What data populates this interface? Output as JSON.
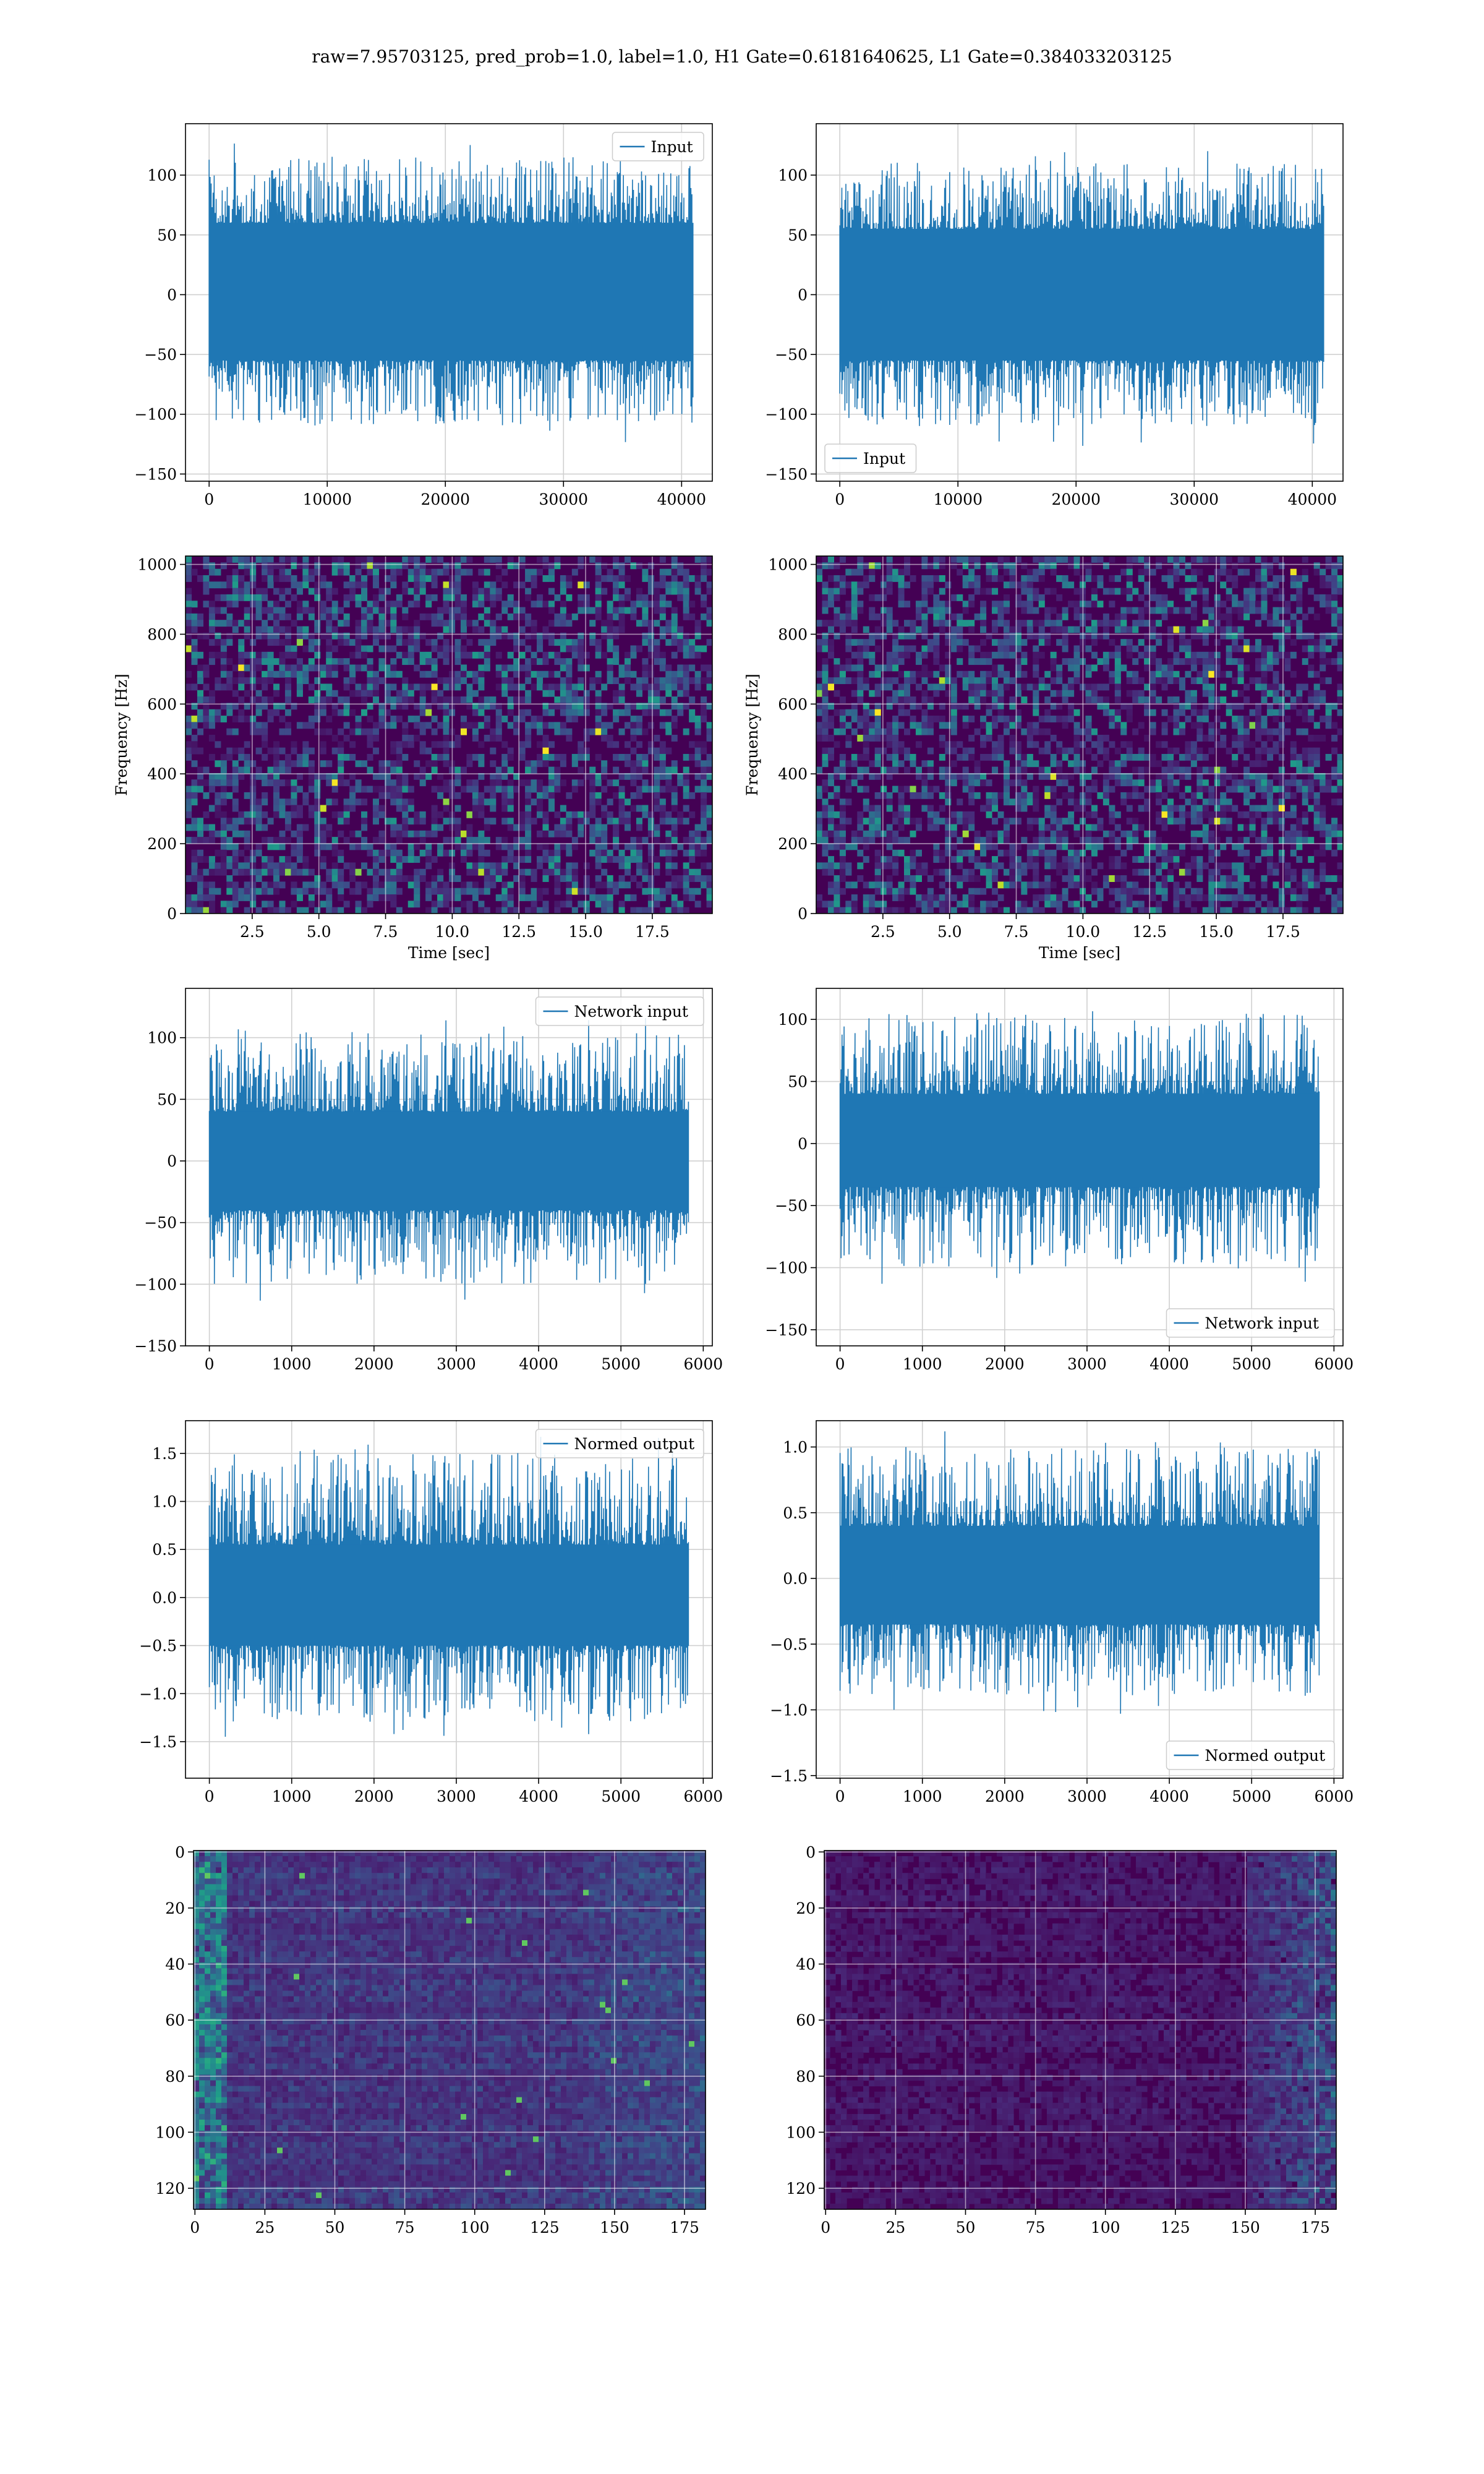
{
  "figure_title": "raw=7.95703125, pred_prob=1.0, label=1.0, H1 Gate=0.6181640625, L1 Gate=0.384033203125",
  "colors": {
    "line": "#1f77b4",
    "grid": "#d0d0d0",
    "viridis_low": "#440154",
    "viridis_high": "#fde725"
  },
  "chart_data": [
    {
      "id": "input-h1",
      "type": "line",
      "xlim": [
        -2000,
        42600
      ],
      "ylim": [
        -156,
        143
      ],
      "xticks": [
        0,
        10000,
        20000,
        30000,
        40000
      ],
      "yticks": [
        -150,
        -100,
        -50,
        0,
        50,
        100
      ],
      "series": [
        {
          "name": "Input",
          "x_range": [
            0,
            40960
          ],
          "envelope": [
            -110,
            115
          ],
          "core": [
            -55,
            60
          ]
        }
      ],
      "legend": "upper right",
      "grid": true
    },
    {
      "id": "input-l1",
      "type": "line",
      "xlim": [
        -2000,
        42600
      ],
      "ylim": [
        -156,
        143
      ],
      "xticks": [
        0,
        10000,
        20000,
        30000,
        40000
      ],
      "yticks": [
        -150,
        -100,
        -50,
        0,
        50,
        100
      ],
      "series": [
        {
          "name": "Input",
          "x_range": [
            0,
            40960
          ],
          "envelope": [
            -110,
            110
          ],
          "core": [
            -55,
            55
          ]
        }
      ],
      "legend": "lower left",
      "grid": true
    },
    {
      "id": "spectrogram-h1",
      "type": "heatmap",
      "xlim": [
        0,
        19.75
      ],
      "ylim": [
        0,
        1024
      ],
      "xticks": [
        2.5,
        5.0,
        7.5,
        10.0,
        12.5,
        15.0,
        17.5
      ],
      "yticks": [
        0,
        200,
        400,
        600,
        800,
        1000
      ],
      "xlabel": "Time [sec]",
      "ylabel": "Frequency [Hz]",
      "colormap": "viridis",
      "grid": true
    },
    {
      "id": "spectrogram-l1",
      "type": "heatmap",
      "xlim": [
        0,
        19.75
      ],
      "ylim": [
        0,
        1024
      ],
      "xticks": [
        2.5,
        5.0,
        7.5,
        10.0,
        12.5,
        15.0,
        17.5
      ],
      "yticks": [
        0,
        200,
        400,
        600,
        800,
        1000
      ],
      "xlabel": "Time [sec]",
      "ylabel": "Frequency [Hz]",
      "colormap": "viridis",
      "grid": true
    },
    {
      "id": "network-input-h1",
      "type": "line",
      "xlim": [
        -290,
        6110
      ],
      "ylim": [
        -150,
        140
      ],
      "xticks": [
        0,
        1000,
        2000,
        3000,
        4000,
        5000,
        6000
      ],
      "yticks": [
        -150,
        -100,
        -50,
        0,
        50,
        100
      ],
      "series": [
        {
          "name": "Network input",
          "x_range": [
            0,
            5820
          ],
          "envelope": [
            -100,
            105
          ],
          "core": [
            -40,
            40
          ]
        }
      ],
      "legend": "upper right",
      "grid": true
    },
    {
      "id": "network-input-l1",
      "type": "line",
      "xlim": [
        -290,
        6110
      ],
      "ylim": [
        -163,
        125
      ],
      "xticks": [
        0,
        1000,
        2000,
        3000,
        4000,
        5000,
        6000
      ],
      "yticks": [
        -150,
        -100,
        -50,
        0,
        50,
        100
      ],
      "series": [
        {
          "name": "Network input",
          "x_range": [
            0,
            5820
          ],
          "envelope": [
            -100,
            105
          ],
          "core": [
            -35,
            40
          ]
        }
      ],
      "legend": "lower right",
      "grid": true
    },
    {
      "id": "normed-output-h1",
      "type": "line",
      "xlim": [
        -290,
        6110
      ],
      "ylim": [
        -1.88,
        1.84
      ],
      "xticks": [
        0,
        1000,
        2000,
        3000,
        4000,
        5000,
        6000
      ],
      "yticks": [
        -1.5,
        -1.0,
        -0.5,
        0.0,
        0.5,
        1.0,
        1.5
      ],
      "series": [
        {
          "name": "Normed output",
          "x_range": [
            0,
            5820
          ],
          "envelope": [
            -1.3,
            1.5
          ],
          "core": [
            -0.5,
            0.55
          ]
        }
      ],
      "legend": "upper right",
      "grid": true
    },
    {
      "id": "normed-output-l1",
      "type": "line",
      "xlim": [
        -290,
        6110
      ],
      "ylim": [
        -1.52,
        1.2
      ],
      "xticks": [
        0,
        1000,
        2000,
        3000,
        4000,
        5000,
        6000
      ],
      "yticks": [
        -1.5,
        -1.0,
        -0.5,
        0.0,
        0.5,
        1.0
      ],
      "series": [
        {
          "name": "Normed output",
          "x_range": [
            0,
            5820
          ],
          "envelope": [
            -0.9,
            1.0
          ],
          "core": [
            -0.35,
            0.4
          ]
        }
      ],
      "legend": "lower right",
      "grid": true
    },
    {
      "id": "feature-map-h1",
      "type": "heatmap",
      "xlim": [
        -0.5,
        182.5
      ],
      "ylim": [
        127.5,
        -0.5
      ],
      "xticks": [
        0,
        25,
        50,
        75,
        100,
        125,
        150,
        175
      ],
      "yticks": [
        0,
        20,
        40,
        60,
        80,
        100,
        120
      ],
      "colormap": "viridis",
      "grid": true
    },
    {
      "id": "feature-map-l1",
      "type": "heatmap",
      "xlim": [
        -0.5,
        182.5
      ],
      "ylim": [
        127.5,
        -0.5
      ],
      "xticks": [
        0,
        25,
        50,
        75,
        100,
        125,
        150,
        175
      ],
      "yticks": [
        0,
        20,
        40,
        60,
        80,
        100,
        120
      ],
      "colormap": "viridis",
      "grid": true
    }
  ]
}
